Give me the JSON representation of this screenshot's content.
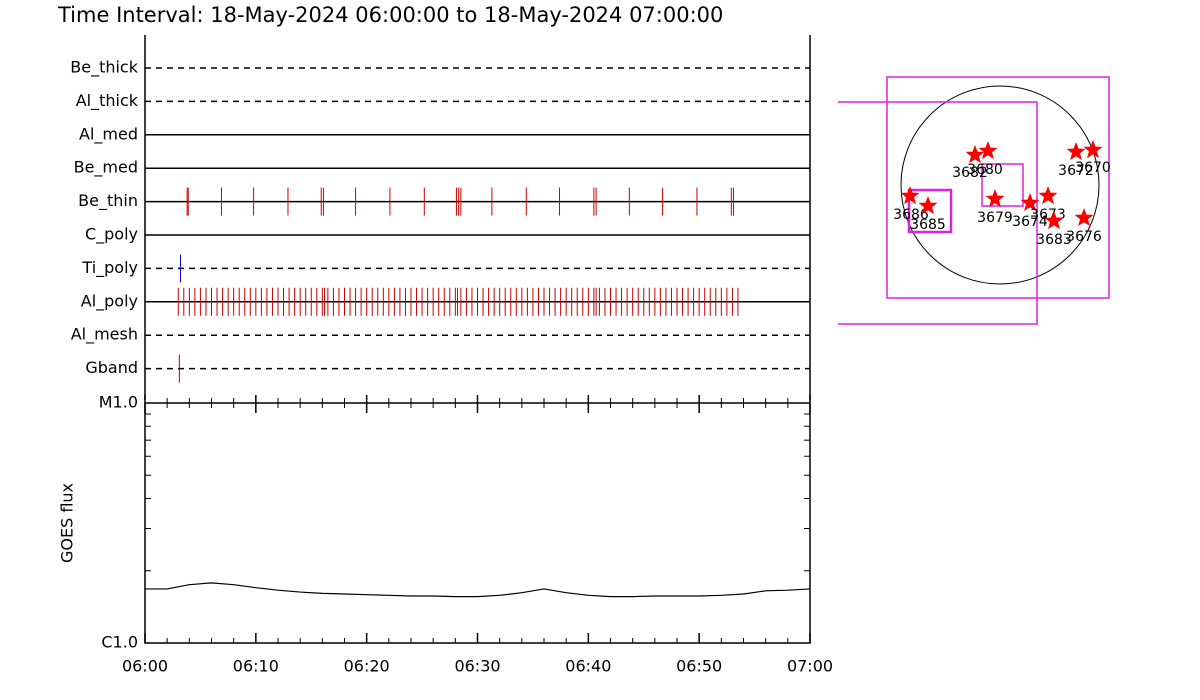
{
  "chart_data": [
    {
      "type": "event",
      "title": "Time Interval: 18-May-2024 06:00:00 to 18-May-2024 07:00:00",
      "xlim": [
        0,
        60
      ],
      "filters": [
        {
          "name": "Be_thick",
          "line": "dashed",
          "color": "#cc0000",
          "events": []
        },
        {
          "name": "Al_thick",
          "line": "dashed",
          "color": "#cc0000",
          "events": []
        },
        {
          "name": "Al_med",
          "line": "solid",
          "color": "#cc0000",
          "events": []
        },
        {
          "name": "Be_med",
          "line": "solid",
          "color": "#cc0000",
          "events": []
        },
        {
          "name": "Be_thin",
          "line": "solid",
          "color": "#cc0000",
          "events": [
            3.8,
            3.9,
            6.9,
            9.8,
            12.9,
            15.9,
            16.1,
            19.0,
            22.1,
            25.2,
            28.1,
            28.3,
            28.5,
            31.3,
            34.4,
            37.4,
            40.5,
            40.7,
            43.7,
            46.7,
            49.8,
            52.9,
            53.1
          ]
        },
        {
          "name": "C_poly",
          "line": "solid",
          "color": "#cc0000",
          "events": []
        },
        {
          "name": "Ti_poly",
          "line": "dashed",
          "color": "#0000cc",
          "events": [
            3.2
          ]
        },
        {
          "name": "Al_poly",
          "line": "solid",
          "color": "#cc0000",
          "events": [
            3.0,
            3.5,
            4.0,
            4.5,
            5.0,
            5.5,
            6.0,
            6.5,
            7.0,
            7.5,
            8.0,
            8.5,
            9.0,
            9.5,
            10.0,
            10.5,
            11.0,
            11.5,
            12.0,
            12.5,
            13.0,
            13.5,
            14.0,
            14.5,
            15.0,
            15.5,
            16.0,
            16.2,
            16.5,
            17.0,
            17.5,
            18.0,
            18.5,
            19.0,
            19.5,
            20.0,
            20.5,
            21.0,
            21.5,
            22.0,
            22.5,
            23.0,
            23.5,
            24.0,
            24.5,
            25.0,
            25.5,
            26.0,
            26.5,
            27.0,
            27.5,
            28.0,
            28.2,
            28.5,
            29.0,
            29.5,
            30.0,
            30.5,
            31.0,
            31.5,
            32.0,
            32.5,
            33.0,
            33.5,
            34.0,
            34.5,
            35.0,
            35.5,
            36.0,
            36.5,
            37.0,
            37.5,
            38.0,
            38.5,
            39.0,
            39.5,
            40.0,
            40.5,
            40.7,
            41.0,
            41.5,
            42.0,
            42.5,
            43.0,
            43.5,
            44.0,
            44.5,
            45.0,
            45.5,
            46.0,
            46.5,
            47.0,
            47.5,
            48.0,
            48.5,
            49.0,
            49.5,
            50.0,
            50.5,
            51.0,
            51.5,
            52.0,
            52.5,
            53.0,
            53.5
          ]
        },
        {
          "name": "Al_mesh",
          "line": "dashed",
          "color": "#cc0000",
          "events": []
        },
        {
          "name": "Gband",
          "line": "dashed",
          "color": "#cc0000",
          "events": [
            3.1
          ]
        }
      ]
    },
    {
      "type": "line",
      "ylabel": "GOES flux",
      "xlim": [
        0,
        60
      ],
      "xticks": [
        {
          "value": 0,
          "label": "06:00"
        },
        {
          "value": 10,
          "label": "06:10"
        },
        {
          "value": 20,
          "label": "06:20"
        },
        {
          "value": 30,
          "label": "06:30"
        },
        {
          "value": 40,
          "label": "06:40"
        },
        {
          "value": 50,
          "label": "06:50"
        },
        {
          "value": 60,
          "label": "07:00"
        }
      ],
      "xminorticks": [
        2,
        4,
        6,
        8,
        12,
        14,
        16,
        18,
        22,
        24,
        26,
        28,
        32,
        34,
        36,
        38,
        42,
        44,
        46,
        48,
        52,
        54,
        56,
        58
      ],
      "log": true,
      "ylim": [
        1e-06,
        1e-05
      ],
      "yticks": [
        {
          "value": 1e-06,
          "label": "C1.0"
        },
        {
          "value": 1e-05,
          "label": "M1.0"
        }
      ],
      "yminorticks": [
        2e-06,
        3e-06,
        4e-06,
        5e-06,
        6e-06,
        7e-06,
        8e-06,
        9e-06
      ],
      "color": "#000000",
      "x": [
        0,
        2,
        4,
        6,
        8,
        10,
        12,
        14,
        16,
        18,
        20,
        22,
        24,
        26,
        28,
        30,
        32,
        34,
        36,
        38,
        40,
        42,
        44,
        46,
        48,
        50,
        52,
        54,
        56,
        58,
        60
      ],
      "values": [
        1.68e-06,
        1.68e-06,
        1.75e-06,
        1.78e-06,
        1.75e-06,
        1.7e-06,
        1.66e-06,
        1.63e-06,
        1.61e-06,
        1.6e-06,
        1.59e-06,
        1.58e-06,
        1.57e-06,
        1.57e-06,
        1.56e-06,
        1.56e-06,
        1.58e-06,
        1.62e-06,
        1.68e-06,
        1.62e-06,
        1.58e-06,
        1.56e-06,
        1.56e-06,
        1.57e-06,
        1.57e-06,
        1.57e-06,
        1.58e-06,
        1.6e-06,
        1.65e-06,
        1.66e-06,
        1.68e-06
      ]
    }
  ],
  "map": {
    "regions": [
      "3686",
      "3685",
      "3682",
      "3680",
      "3679",
      "3674",
      "3673",
      "3683",
      "3676",
      "3672",
      "3670"
    ]
  }
}
